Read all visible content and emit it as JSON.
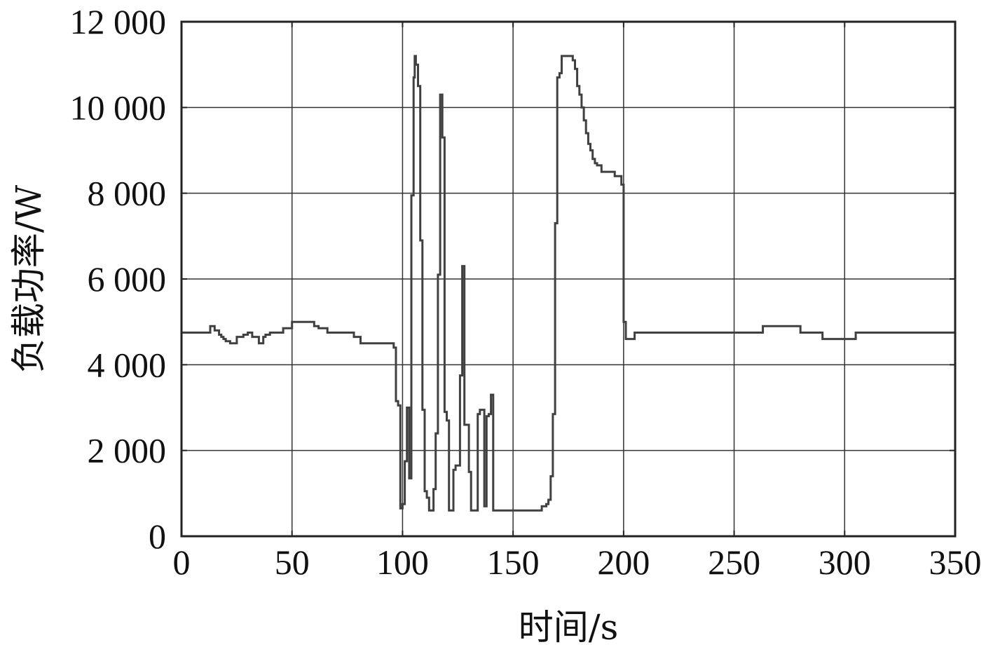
{
  "chart_data": {
    "type": "line",
    "title": "",
    "xlabel": "时间/s",
    "ylabel": "负载功率/W",
    "xlim": [
      0,
      350
    ],
    "ylim": [
      0,
      12000
    ],
    "x_ticks": [
      0,
      50,
      100,
      150,
      200,
      250,
      300,
      350
    ],
    "y_ticks": [
      0,
      2000,
      4000,
      6000,
      8000,
      10000,
      12000
    ],
    "x_tick_labels": [
      "0",
      "50",
      "100",
      "150",
      "200",
      "250",
      "300",
      "350"
    ],
    "y_tick_labels": [
      "0",
      "2 000",
      "4 000",
      "6 000",
      "8 000",
      "10 000",
      "12 000"
    ],
    "grid": true,
    "legend": "none",
    "line_color": "#404040",
    "series": [
      {
        "step": "post",
        "x": [
          0,
          13,
          15,
          17,
          18,
          19,
          20,
          22,
          25,
          28,
          30,
          32,
          35,
          37,
          38,
          40,
          43,
          46,
          50,
          52,
          56,
          60,
          62,
          66,
          70,
          78,
          81,
          87,
          90,
          93,
          96,
          97,
          98,
          99,
          100,
          101,
          102,
          103,
          104,
          105,
          105.5,
          106,
          107,
          108,
          109,
          110,
          111,
          112,
          113,
          114,
          115,
          116,
          117,
          118,
          119,
          120,
          121,
          122,
          123,
          124,
          126,
          127,
          128,
          129,
          130,
          131,
          132,
          134,
          135,
          137,
          138,
          139,
          140,
          141,
          142,
          150,
          158,
          163,
          165,
          166,
          167,
          168,
          169,
          170,
          171,
          172,
          175,
          177,
          178,
          179,
          180,
          181,
          182,
          183,
          184,
          185,
          186,
          187,
          188,
          190,
          192,
          196,
          199,
          200,
          201,
          202,
          205,
          220,
          240,
          260,
          263,
          275,
          280,
          285,
          290,
          300,
          305,
          320,
          350
        ],
        "y": [
          4750,
          4900,
          4800,
          4700,
          4650,
          4600,
          4550,
          4500,
          4650,
          4700,
          4750,
          4650,
          4500,
          4650,
          4700,
          4750,
          4750,
          4850,
          5000,
          5000,
          5000,
          4900,
          4850,
          4750,
          4750,
          4650,
          4500,
          4500,
          4500,
          4500,
          4400,
          3150,
          3050,
          650,
          750,
          1750,
          3000,
          1350,
          7950,
          10700,
          11200,
          11000,
          10500,
          6900,
          2950,
          1050,
          900,
          600,
          600,
          1100,
          2400,
          6100,
          10300,
          9300,
          2900,
          2700,
          600,
          600,
          1550,
          1650,
          3750,
          6300,
          2600,
          2600,
          1500,
          600,
          600,
          2850,
          2950,
          700,
          2800,
          2850,
          3300,
          600,
          600,
          600,
          600,
          700,
          750,
          850,
          1400,
          2850,
          7300,
          10700,
          10800,
          11200,
          11200,
          11100,
          10900,
          10500,
          10300,
          10000,
          9700,
          9400,
          9150,
          9000,
          8800,
          8700,
          8650,
          8500,
          8500,
          8400,
          8200,
          5000,
          4600,
          4600,
          4750,
          4750,
          4750,
          4750,
          4900,
          4900,
          4750,
          4750,
          4600,
          4600,
          4750,
          4750,
          4750
        ]
      }
    ]
  }
}
